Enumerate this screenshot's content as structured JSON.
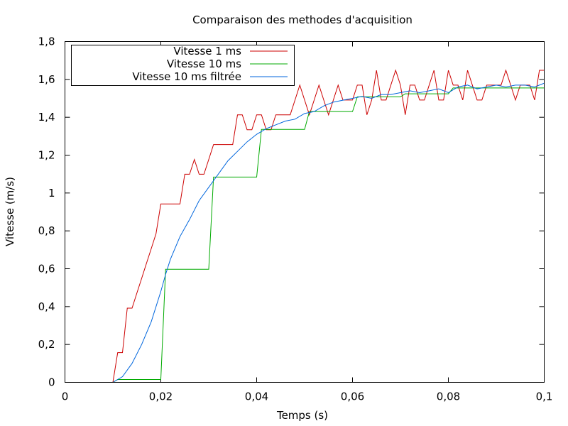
{
  "chart_data": {
    "type": "line",
    "title": "Comparaison des methodes d'acquisition",
    "xlabel": "Temps (s)",
    "ylabel": "Vitesse (m/s)",
    "xlim": [
      0,
      0.1
    ],
    "ylim": [
      0,
      1.8
    ],
    "x_ticks": [
      0,
      0.02,
      0.04,
      0.06,
      0.08,
      0.1
    ],
    "x_tick_labels": [
      "0",
      "0,02",
      "0,04",
      "0,06",
      "0,08",
      "0,1"
    ],
    "y_ticks": [
      0,
      0.2,
      0.4,
      0.6,
      0.8,
      1.0,
      1.2,
      1.4,
      1.6,
      1.8
    ],
    "y_tick_labels": [
      "0",
      "0,2",
      "0,4",
      "0,6",
      "0,8",
      "1",
      "1,2",
      "1,4",
      "1,6",
      "1,8"
    ],
    "grid": false,
    "legend_position": "top-left",
    "series": [
      {
        "name": "Vitesse 1 ms",
        "color": "#cc0000",
        "style": "line",
        "points": [
          [
            0.01,
            0.0
          ],
          [
            0.011,
            0.157
          ],
          [
            0.012,
            0.157
          ],
          [
            0.013,
            0.392
          ],
          [
            0.014,
            0.392
          ],
          [
            0.015,
            0.471
          ],
          [
            0.016,
            0.549
          ],
          [
            0.017,
            0.628
          ],
          [
            0.018,
            0.706
          ],
          [
            0.019,
            0.785
          ],
          [
            0.02,
            0.942
          ],
          [
            0.021,
            0.942
          ],
          [
            0.022,
            0.942
          ],
          [
            0.023,
            0.942
          ],
          [
            0.024,
            0.942
          ],
          [
            0.025,
            1.099
          ],
          [
            0.026,
            1.099
          ],
          [
            0.027,
            1.177
          ],
          [
            0.028,
            1.099
          ],
          [
            0.029,
            1.099
          ],
          [
            0.03,
            1.177
          ],
          [
            0.031,
            1.256
          ],
          [
            0.032,
            1.256
          ],
          [
            0.033,
            1.256
          ],
          [
            0.034,
            1.256
          ],
          [
            0.035,
            1.256
          ],
          [
            0.036,
            1.413
          ],
          [
            0.037,
            1.413
          ],
          [
            0.038,
            1.334
          ],
          [
            0.039,
            1.334
          ],
          [
            0.04,
            1.413
          ],
          [
            0.041,
            1.413
          ],
          [
            0.042,
            1.334
          ],
          [
            0.043,
            1.334
          ],
          [
            0.044,
            1.413
          ],
          [
            0.045,
            1.413
          ],
          [
            0.046,
            1.413
          ],
          [
            0.047,
            1.413
          ],
          [
            0.048,
            1.491
          ],
          [
            0.049,
            1.57
          ],
          [
            0.05,
            1.491
          ],
          [
            0.051,
            1.413
          ],
          [
            0.052,
            1.491
          ],
          [
            0.053,
            1.57
          ],
          [
            0.054,
            1.491
          ],
          [
            0.055,
            1.413
          ],
          [
            0.056,
            1.491
          ],
          [
            0.057,
            1.57
          ],
          [
            0.058,
            1.491
          ],
          [
            0.059,
            1.491
          ],
          [
            0.06,
            1.491
          ],
          [
            0.061,
            1.57
          ],
          [
            0.062,
            1.57
          ],
          [
            0.063,
            1.413
          ],
          [
            0.064,
            1.491
          ],
          [
            0.065,
            1.648
          ],
          [
            0.066,
            1.491
          ],
          [
            0.067,
            1.491
          ],
          [
            0.068,
            1.57
          ],
          [
            0.069,
            1.648
          ],
          [
            0.07,
            1.57
          ],
          [
            0.071,
            1.413
          ],
          [
            0.072,
            1.57
          ],
          [
            0.073,
            1.57
          ],
          [
            0.074,
            1.491
          ],
          [
            0.075,
            1.491
          ],
          [
            0.076,
            1.57
          ],
          [
            0.077,
            1.648
          ],
          [
            0.078,
            1.491
          ],
          [
            0.079,
            1.491
          ],
          [
            0.08,
            1.648
          ],
          [
            0.081,
            1.57
          ],
          [
            0.082,
            1.57
          ],
          [
            0.083,
            1.491
          ],
          [
            0.084,
            1.648
          ],
          [
            0.085,
            1.57
          ],
          [
            0.086,
            1.491
          ],
          [
            0.087,
            1.491
          ],
          [
            0.088,
            1.57
          ],
          [
            0.089,
            1.57
          ],
          [
            0.09,
            1.57
          ],
          [
            0.091,
            1.57
          ],
          [
            0.092,
            1.648
          ],
          [
            0.093,
            1.57
          ],
          [
            0.094,
            1.491
          ],
          [
            0.095,
            1.57
          ],
          [
            0.096,
            1.57
          ],
          [
            0.097,
            1.57
          ],
          [
            0.098,
            1.491
          ],
          [
            0.099,
            1.648
          ],
          [
            0.1,
            1.648
          ]
        ]
      },
      {
        "name": "Vitesse 10 ms",
        "color": "#00aa00",
        "style": "line",
        "points": [
          [
            0.01,
            0.0
          ],
          [
            0.011,
            0.015
          ],
          [
            0.02,
            0.015
          ],
          [
            0.021,
            0.597
          ],
          [
            0.03,
            0.597
          ],
          [
            0.031,
            1.084
          ],
          [
            0.04,
            1.084
          ],
          [
            0.041,
            1.336
          ],
          [
            0.05,
            1.336
          ],
          [
            0.051,
            1.43
          ],
          [
            0.06,
            1.43
          ],
          [
            0.061,
            1.508
          ],
          [
            0.07,
            1.508
          ],
          [
            0.071,
            1.524
          ],
          [
            0.08,
            1.524
          ],
          [
            0.081,
            1.555
          ],
          [
            0.1,
            1.555
          ]
        ]
      },
      {
        "name": "Vitesse 10 ms filtrée",
        "color": "#0066dd",
        "style": "line",
        "points": [
          [
            0.01,
            0.0
          ],
          [
            0.012,
            0.03
          ],
          [
            0.014,
            0.1
          ],
          [
            0.016,
            0.2
          ],
          [
            0.018,
            0.32
          ],
          [
            0.02,
            0.48
          ],
          [
            0.021,
            0.57
          ],
          [
            0.022,
            0.65
          ],
          [
            0.024,
            0.77
          ],
          [
            0.026,
            0.86
          ],
          [
            0.028,
            0.96
          ],
          [
            0.03,
            1.03
          ],
          [
            0.032,
            1.1
          ],
          [
            0.034,
            1.17
          ],
          [
            0.036,
            1.22
          ],
          [
            0.038,
            1.27
          ],
          [
            0.04,
            1.31
          ],
          [
            0.042,
            1.34
          ],
          [
            0.044,
            1.36
          ],
          [
            0.046,
            1.38
          ],
          [
            0.048,
            1.39
          ],
          [
            0.05,
            1.42
          ],
          [
            0.052,
            1.43
          ],
          [
            0.054,
            1.46
          ],
          [
            0.056,
            1.48
          ],
          [
            0.058,
            1.49
          ],
          [
            0.06,
            1.5
          ],
          [
            0.062,
            1.51
          ],
          [
            0.064,
            1.5
          ],
          [
            0.066,
            1.52
          ],
          [
            0.068,
            1.52
          ],
          [
            0.07,
            1.53
          ],
          [
            0.072,
            1.54
          ],
          [
            0.074,
            1.53
          ],
          [
            0.076,
            1.54
          ],
          [
            0.078,
            1.55
          ],
          [
            0.08,
            1.53
          ],
          [
            0.082,
            1.56
          ],
          [
            0.084,
            1.57
          ],
          [
            0.086,
            1.55
          ],
          [
            0.088,
            1.56
          ],
          [
            0.09,
            1.57
          ],
          [
            0.092,
            1.56
          ],
          [
            0.094,
            1.57
          ],
          [
            0.096,
            1.57
          ],
          [
            0.098,
            1.56
          ],
          [
            0.1,
            1.58
          ]
        ]
      }
    ]
  }
}
